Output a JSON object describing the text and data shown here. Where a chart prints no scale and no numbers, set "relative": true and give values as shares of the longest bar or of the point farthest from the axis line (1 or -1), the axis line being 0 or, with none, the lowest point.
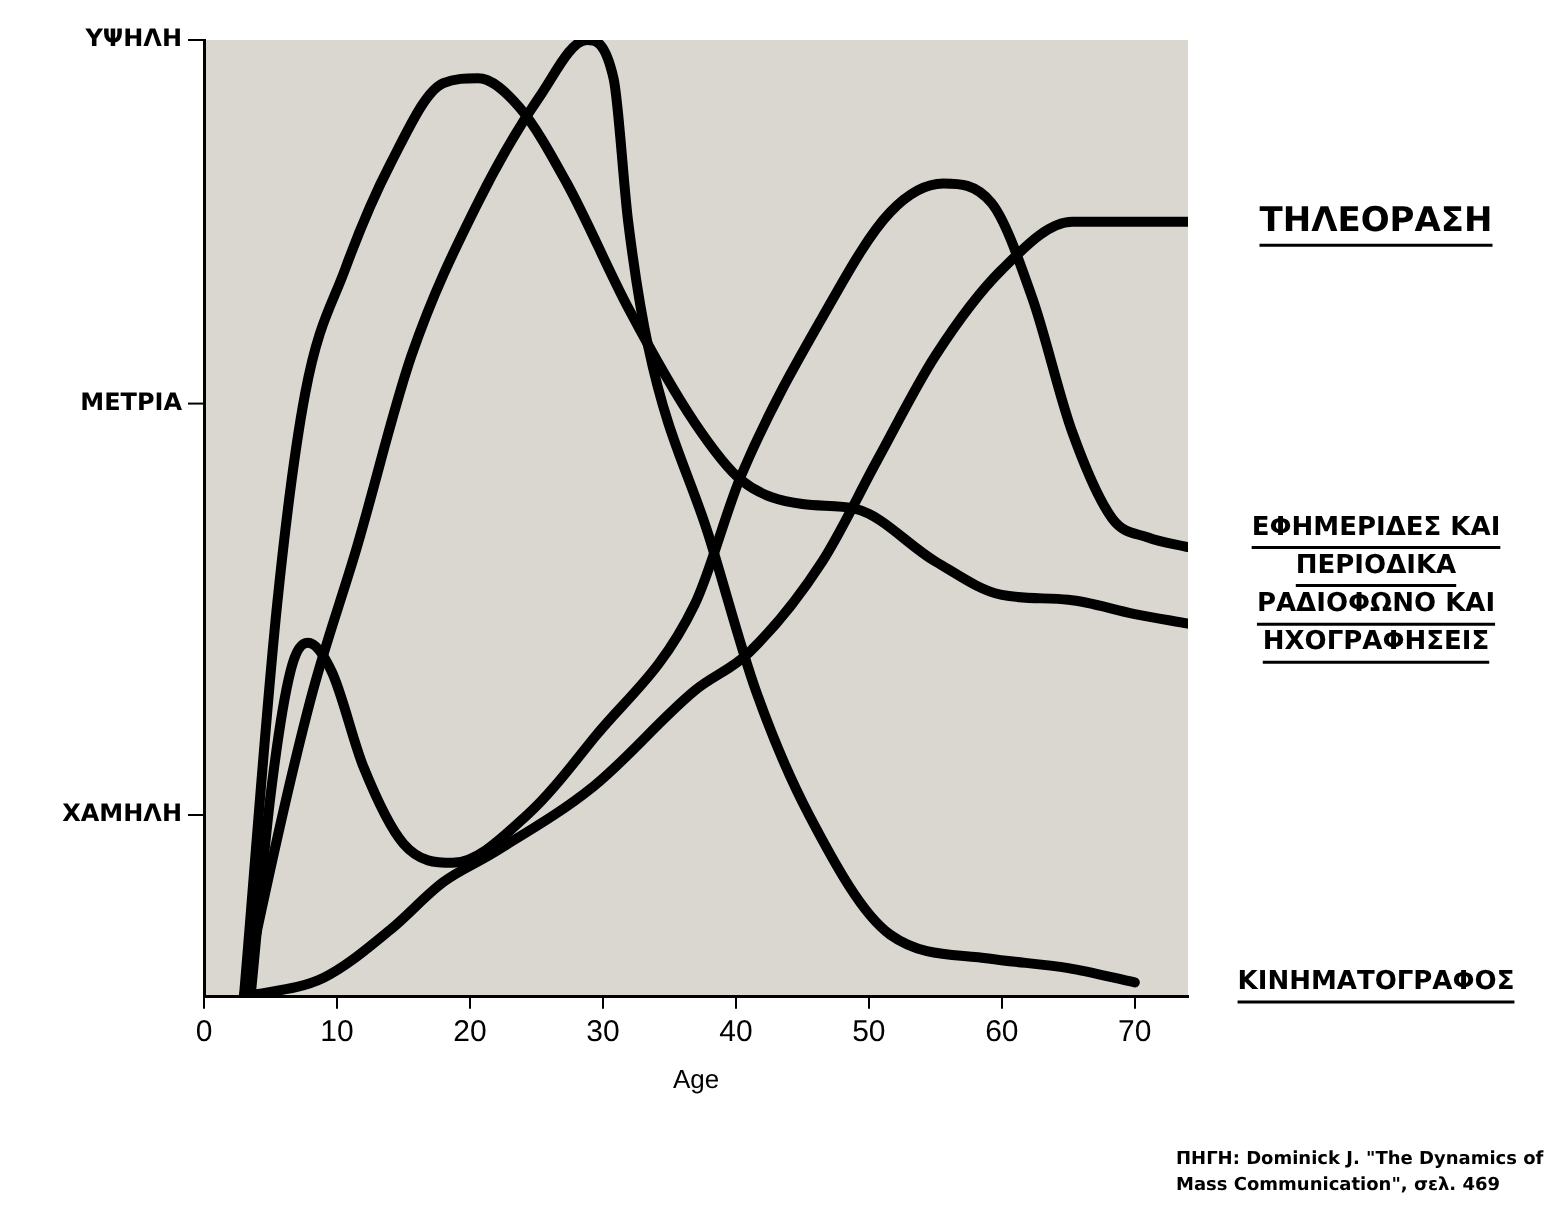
{
  "chart_data": {
    "type": "line",
    "xlabel": "Age",
    "xlim": [
      0,
      74
    ],
    "xticks": [
      0,
      10,
      20,
      30,
      40,
      50,
      60,
      70
    ],
    "relative": true,
    "grid": false,
    "legend": false,
    "marker": "none",
    "line_style": "solid",
    "annotations": [
      "ΧΑΜΗΛΗ",
      "ΜΕΤΡΙΑ",
      "ΥΨΗΛΗ",
      "ΠΗΓΗ: Dominick J. \"The Dynamics of Mass Communication\", σελ. 469"
    ],
    "series": [
      {
        "name": "ΤΗΛΕΟΡΑΣΗ",
        "color": "#000000",
        "x": [
          3,
          9,
          14,
          18,
          21.7,
          29.3,
          36.9,
          41,
          46.5,
          50.6,
          55,
          60,
          65.3,
          70,
          74
        ],
        "values": [
          0,
          0.02,
          0.07,
          0.12,
          0.15,
          0.22,
          0.32,
          0.36,
          0.455,
          0.56,
          0.67,
          0.76,
          0.81,
          0.81,
          0.81
        ]
      },
      {
        "name": "ΕΦΗΜΕΡΙΔΕΣ ΚΑΙ ΠΕΡΙΟΔΙΚΑ",
        "color": "#000000",
        "x": [
          3.5,
          5,
          6.5,
          7.8,
          9.6,
          12,
          15,
          18.7,
          24.3,
          29.3,
          36.9,
          40.4,
          46.5,
          51.6,
          55.6,
          59.2,
          62.3,
          65.3,
          68.3,
          71,
          74
        ],
        "values": [
          0,
          0.21,
          0.34,
          0.37,
          0.34,
          0.24,
          0.16,
          0.14,
          0.19,
          0.27,
          0.41,
          0.545,
          0.71,
          0.82,
          0.85,
          0.83,
          0.73,
          0.59,
          0.5,
          0.48,
          0.47
        ]
      },
      {
        "name": "ΡΑΔΙΟΦΩΝΟ ΚΑΙ ΗΧΟΓΡΑΦΗΣΕΙΣ",
        "color": "#000000",
        "x": [
          3,
          5.5,
          7.6,
          10.6,
          14,
          18,
          20.6,
          23.7,
          27.3,
          31.9,
          36.9,
          40.4,
          45,
          49,
          55,
          60,
          65,
          70,
          74
        ],
        "values": [
          0,
          0.41,
          0.63,
          0.76,
          0.87,
          0.955,
          0.96,
          0.93,
          0.85,
          0.72,
          0.6,
          0.54,
          0.515,
          0.51,
          0.455,
          0.42,
          0.415,
          0.4,
          0.39
        ]
      },
      {
        "name": "ΚΙΝΗΜΑΤΟΓΡΑΦΟΣ",
        "color": "#000000",
        "x": [
          3,
          4,
          8,
          11.5,
          15.6,
          20.6,
          25.2,
          28.8,
          30.8,
          31.9,
          33.4,
          38,
          41.5,
          45.5,
          51.6,
          59,
          65,
          70
        ],
        "values": [
          0,
          0.07,
          0.31,
          0.47,
          0.67,
          0.83,
          0.94,
          1,
          0.96,
          0.81,
          0.68,
          0.48,
          0.32,
          0.19,
          0.065,
          0.04,
          0.03,
          0.015
        ]
      }
    ]
  }
}
